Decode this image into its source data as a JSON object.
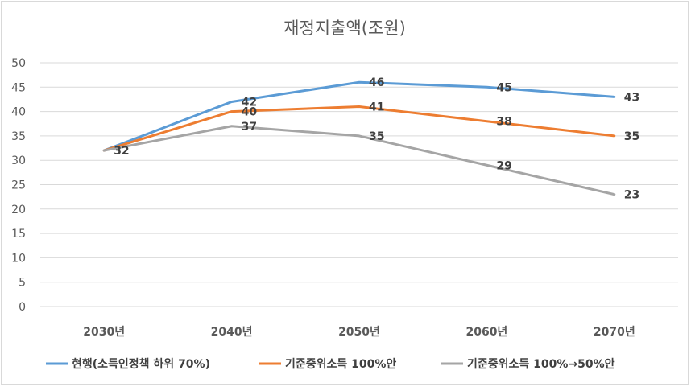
{
  "chart_data": {
    "type": "line",
    "title": "재정지출액(조원)",
    "categories": [
      "2030년",
      "2040년",
      "2050년",
      "2060년",
      "2070년"
    ],
    "ylim": [
      0,
      50
    ],
    "yticks": [
      0,
      5,
      10,
      15,
      20,
      25,
      30,
      35,
      40,
      45,
      50
    ],
    "grid": true,
    "legend_position": "bottom",
    "series": [
      {
        "name": "현행(소득인정책 하위 70%)",
        "values": [
          32,
          42,
          46,
          45,
          43
        ],
        "color": "#5b9bd5"
      },
      {
        "name": "기준중위소득 100%안",
        "values": [
          32,
          40,
          41,
          38,
          35
        ],
        "color": "#ed7d31"
      },
      {
        "name": "기준중위소득 100%→50%안",
        "values": [
          32,
          37,
          35,
          29,
          23
        ],
        "color": "#a5a5a5"
      }
    ],
    "data_labels": [
      {
        "series": 2,
        "index": 0,
        "text": "32"
      },
      {
        "series": 0,
        "index": 1,
        "text": "42"
      },
      {
        "series": 1,
        "index": 1,
        "text": "40"
      },
      {
        "series": 2,
        "index": 1,
        "text": "37"
      },
      {
        "series": 0,
        "index": 2,
        "text": "46"
      },
      {
        "series": 1,
        "index": 2,
        "text": "41"
      },
      {
        "series": 2,
        "index": 2,
        "text": "35"
      },
      {
        "series": 0,
        "index": 3,
        "text": "45"
      },
      {
        "series": 1,
        "index": 3,
        "text": "38"
      },
      {
        "series": 2,
        "index": 3,
        "text": "29"
      },
      {
        "series": 0,
        "index": 4,
        "text": "43"
      },
      {
        "series": 1,
        "index": 4,
        "text": "35"
      },
      {
        "series": 2,
        "index": 4,
        "text": "23"
      }
    ]
  }
}
